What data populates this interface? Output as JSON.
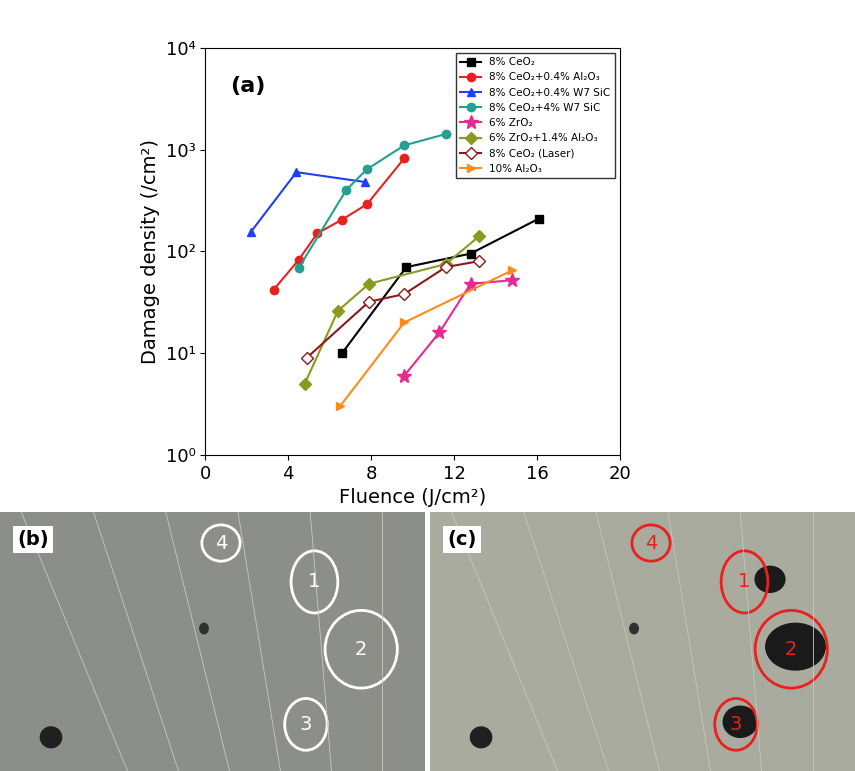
{
  "chart_data": {
    "type": "line",
    "title": "(a)",
    "x_label": "Fluence (J/cm²)",
    "y_label": "Damage density (/cm²)",
    "log": "y",
    "xlim": [
      0,
      20
    ],
    "xticks": [
      0,
      4,
      8,
      12,
      16,
      20
    ],
    "ylim": [
      1,
      10000
    ],
    "yticks": [
      {
        "value": 1,
        "label": "10⁰"
      },
      {
        "value": 10,
        "label": "10¹"
      },
      {
        "value": 100,
        "label": "10²"
      },
      {
        "value": 1000,
        "label": "10³"
      },
      {
        "value": 10000,
        "label": "10⁴"
      }
    ],
    "legend": "upper right",
    "series": [
      {
        "name": "8% CeO₂",
        "color": "#000000",
        "marker": "square",
        "x": [
          6.6,
          9.7,
          12.8,
          16.1
        ],
        "values": [
          10,
          70,
          95,
          210
        ]
      },
      {
        "name": "8% CeO₂+0.4% Al₂O₃",
        "color": "#e8211f",
        "marker": "circle",
        "x": [
          3.3,
          4.5,
          5.4,
          6.6,
          7.8,
          9.6
        ],
        "values": [
          42,
          82,
          150,
          205,
          290,
          820
        ]
      },
      {
        "name": "8% CeO₂+0.4% W7 SiC",
        "color": "#1f3ff5",
        "marker": "triangle_up",
        "x": [
          2.2,
          4.4,
          7.7
        ],
        "values": [
          155,
          600,
          480
        ]
      },
      {
        "name": "8% CeO₂+4% W7 SiC",
        "color": "#24a090",
        "marker": "circle",
        "x": [
          4.5,
          6.8,
          7.8,
          9.6,
          11.6
        ],
        "values": [
          68,
          400,
          640,
          1100,
          1420
        ]
      },
      {
        "name": "6% ZrO₂",
        "color": "#e8298f",
        "marker": "star",
        "x": [
          9.6,
          11.3,
          12.8,
          14.8
        ],
        "values": [
          6,
          16,
          48,
          52
        ]
      },
      {
        "name": "6% ZrO₂+1.4% Al₂O₃",
        "color": "#8a9a1f",
        "marker": "diamond",
        "x": [
          4.8,
          6.4,
          7.9,
          11.6,
          13.2
        ],
        "values": [
          5,
          26,
          48,
          75,
          140
        ]
      },
      {
        "name": "8% CeO₂ (Laser)",
        "color": "#8b1a1a",
        "marker": "open_diamond",
        "x": [
          4.9,
          7.9,
          9.6,
          11.6,
          13.2
        ],
        "values": [
          9,
          32,
          38,
          70,
          80
        ]
      },
      {
        "name": "10% Al₂O₃",
        "color": "#ff8c1a",
        "marker": "triangle_right",
        "x": [
          6.5,
          9.6,
          14.8
        ],
        "values": [
          3,
          20,
          65
        ]
      }
    ]
  },
  "images": [
    {
      "label": "(b)",
      "color": "#ffffff",
      "marks": [
        "1",
        "2",
        "3",
        "4"
      ]
    },
    {
      "label": "(c)",
      "color": "#e8211f",
      "marks": [
        "1",
        "2",
        "3",
        "4"
      ]
    }
  ]
}
